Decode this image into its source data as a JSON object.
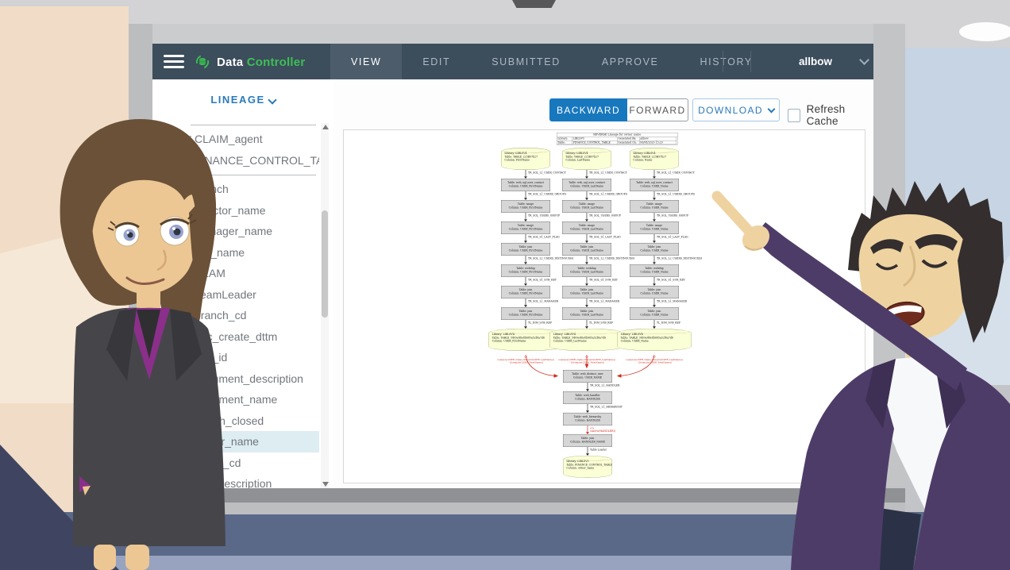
{
  "app": {
    "navbar": {
      "brand": {
        "word1": "Data",
        "word2": "Controller"
      },
      "tabs": [
        {
          "label": "VIEW",
          "active": true
        },
        {
          "label": "EDIT",
          "active": false
        },
        {
          "label": "SUBMITTED",
          "active": false
        },
        {
          "label": "APPROVE",
          "active": false
        },
        {
          "label": "HISTORY",
          "active": false
        }
      ],
      "user": "allbow"
    },
    "sidebar": {
      "section_label": "LINEAGE",
      "items": [
        {
          "type": "sep"
        },
        {
          "label": "CLAIM_agent",
          "icon": "table",
          "selected": false
        },
        {
          "label": "FINANCE_CONTROL_TABLE",
          "icon": "table",
          "selected": false
        },
        {
          "type": "sep"
        },
        {
          "label": "branch",
          "icon": "",
          "selected": false
        },
        {
          "label": "director_name",
          "icon": "",
          "selected": false
        },
        {
          "label": "manager_name",
          "icon": "",
          "selected": false
        },
        {
          "label": "org_name",
          "icon": "",
          "selected": false
        },
        {
          "label": "TEAM",
          "icon": "",
          "selected": false
        },
        {
          "label": "TeamLeader",
          "icon": "",
          "selected": false
        },
        {
          "label": "branch_cd",
          "icon": "pencil",
          "selected": false
        },
        {
          "label": "doc_create_dttm",
          "icon": "pencil",
          "selected": false
        },
        {
          "label": "doc_id",
          "icon": "pencil",
          "selected": false
        },
        {
          "label": "document_description",
          "icon": "pencil",
          "selected": false
        },
        {
          "label": "document_name",
          "icon": "",
          "selected": false
        },
        {
          "label": "month_closed",
          "icon": "",
          "selected": false
        },
        {
          "label": "owner_name",
          "icon": "",
          "selected": true
        },
        {
          "label": "policy_cd",
          "icon": "",
          "selected": false
        },
        {
          "label": "risk_description",
          "icon": "char",
          "selected": false
        }
      ]
    },
    "toolbar": {
      "backward": "BACKWARD",
      "forward": "FORWARD",
      "download": "DOWNLOAD",
      "refresh_label": "Refresh Cache",
      "refresh_checked": false
    },
    "diagram": {
      "keys": {
        "library": "Library:",
        "table": "Table:",
        "column": "Column:"
      },
      "header": {
        "title": "REVERSE Lineage for owner_name",
        "rows": [
          [
            {
              "k": "Library:",
              "v": "LIBLSV5"
            },
            {
              "k": "Generated By:",
              "v": "allbow"
            }
          ],
          [
            {
              "k": "Table:",
              "v": "FINANCE_CONTROL_TABLE"
            },
            {
              "k": "Generated On:",
              "v": "06/08/2020 15:29"
            }
          ]
        ]
      },
      "columns": [
        {
          "source": {
            "library": "LIBLSV4",
            "table": "TABLE_223B97b27",
            "column": "FirstName"
          },
          "steps": [
            {
              "edge": "TR_SQL_L1_USER_CONTACT",
              "table": "web_sql_user_contact",
              "column": "USER_FirstName"
            },
            {
              "edge": "TR_SQL_L1_USERS_GROUPS",
              "table": "usage",
              "column": "USER_FirstName"
            },
            {
              "edge": "TR_SQL_USERS_GROUP",
              "table": "usage",
              "column": "USER_FirstName"
            },
            {
              "edge": "TR_SQL_S1_LAST_FLAG",
              "table": "join",
              "column": "USER_FirstName"
            },
            {
              "edge": "TR_SQL_L2_USERS_DISTINGUISH",
              "table": "webdup",
              "column": "USER_FirstName"
            },
            {
              "edge": "TR_SQL_S1_SUR_KEY",
              "table": "join",
              "column": "USER_FirstName"
            },
            {
              "edge": "TR_SQL_L1_MANAGER",
              "table": "join",
              "column": "USER_FirstName"
            }
          ],
          "target_edge": "TL_DIM_SUB_REF",
          "target": {
            "library": "LIBLSV4",
            "table": "TABLE_5409e48e8b685a52f6a7d6",
            "column": "USER_FirstName"
          },
          "red_label_lines": [
            "<<TR_SQL_USER_DISTVAL>>",
            "coalesce(USER_Name,trim(str(USER_LastName))",
            "' '||trim(str(USER_FirstName))"
          ]
        },
        {
          "source": {
            "library": "LIBLSV4",
            "table": "TABLE_223B97b27",
            "column": "LastName"
          },
          "steps": [
            {
              "edge": "TR_SQL_L1_USER_CONTACT",
              "table": "web_sql_user_contact",
              "column": "USER_LastName"
            },
            {
              "edge": "TR_SQL_L1_USERS_GROUPS",
              "table": "usage",
              "column": "USER_LastName"
            },
            {
              "edge": "TR_SQL_USERS_GROUP",
              "table": "usage",
              "column": "USER_LastName"
            },
            {
              "edge": "TR_SQL_S1_LAST_FLAG",
              "table": "join",
              "column": "USER_LastName"
            },
            {
              "edge": "TR_SQL_L2_USERS_DISTINGUISH",
              "table": "webdup",
              "column": "USER_LastName"
            },
            {
              "edge": "TR_SQL_S1_SUR_KEY",
              "table": "join",
              "column": "USER_LastName"
            },
            {
              "edge": "TR_SQL_L1_MANAGER",
              "table": "join",
              "column": "USER_LastName"
            }
          ],
          "target_edge": "TL_DIM_SUB_REF",
          "target": {
            "library": "LIBLSV4",
            "table": "TABLE_5409e48e8b685a52f6a7d6",
            "column": "USER_LastName"
          },
          "red_label_lines": [
            "<<TR_SQL_USER_DISTVAL>>",
            "coalesce(USER_Name,trim(str(USER_LastName))",
            "' '||trim(str(USER_FirstName))"
          ]
        },
        {
          "source": {
            "library": "LIBLSV4",
            "table": "TABLE_223B97b27",
            "column": "Name"
          },
          "steps": [
            {
              "edge": "TR_SQL_L1_USER_CONTACT",
              "table": "web_sql_user_contact",
              "column": "USER_Name"
            },
            {
              "edge": "TR_SQL_L1_USERS_GROUPS",
              "table": "usage",
              "column": "USER_Name"
            },
            {
              "edge": "TR_SQL_USERS_GROUP",
              "table": "usage",
              "column": "USER_Name"
            },
            {
              "edge": "TR_SQL_S1_LAST_FLAG",
              "table": "join",
              "column": "USER_Name"
            },
            {
              "edge": "TR_SQL_L2_USERS_DISTINGUISH",
              "table": "webdup",
              "column": "USER_Name"
            },
            {
              "edge": "TR_SQL_S1_SUR_KEY",
              "table": "join",
              "column": "USER_Name"
            },
            {
              "edge": "TR_SQL_L1_MANAGER",
              "table": "join",
              "column": "USER_Name"
            }
          ],
          "target_edge": "TL_DIM_SUB_REF",
          "target": {
            "library": "LIBLSV4",
            "table": "TABLE_5409e48e8b685a52f6a7d6",
            "column": "USER_Name"
          },
          "red_label_lines": [
            "<<TR_SQL_USER_DISTVAL>>",
            "coalesce(USER_Name,trim(str(USER_LastName))",
            "' '||trim(str(USER_FirstName))"
          ]
        }
      ],
      "center": {
        "nodes": [
          {
            "type": "box",
            "table": "web_distinct_user",
            "column": "USER_NAME"
          },
          {
            "type": "edge",
            "label": "TR_SQL_L1_HANDLER"
          },
          {
            "type": "box",
            "table": "web_handler",
            "column": "HANDLER"
          },
          {
            "type": "edge",
            "label": "TR_SQL_L1_HIERARCHY"
          },
          {
            "type": "box",
            "table": "web_hierarchy",
            "column": "HANDLER"
          },
          {
            "type": "rededge",
            "lines": [
              "<<TR_SQL_L1_CURRENT_HANDLER>>",
              "case(w(HANDLER))"
            ]
          },
          {
            "type": "box",
            "table": "join",
            "column": "HANDLER_NAME"
          },
          {
            "type": "edge",
            "label": "Table Loader"
          },
          {
            "type": "cyl",
            "library": "LIBLSV5",
            "table": "FINANCE_CONTROL_TABLE",
            "column": "owner_name"
          }
        ]
      }
    }
  },
  "colors": {
    "navbar": "#3c4d5c",
    "accent_blue": "#1878be",
    "brand_green": "#3dbf56",
    "selected_row": "#ddedf2",
    "lineage_red": "#d12b1e"
  },
  "icons": {
    "table": "⊞",
    "pencil": "✎",
    "char": "a"
  }
}
